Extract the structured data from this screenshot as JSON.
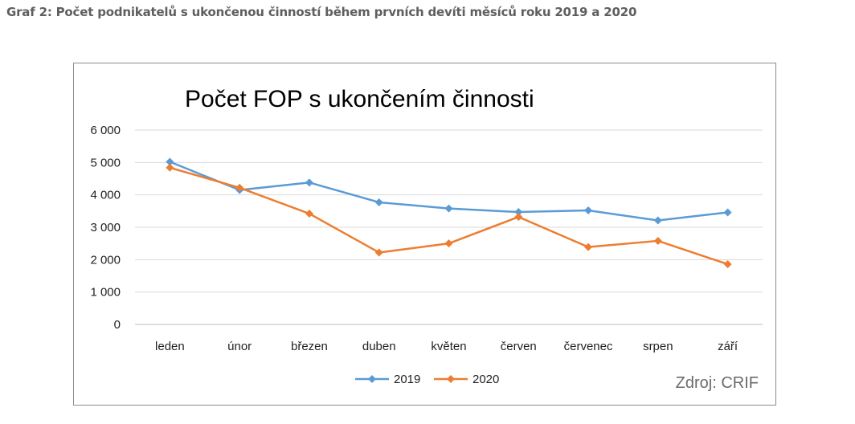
{
  "caption": "Graf 2: Počet podnikatelů s ukončenou činností během prvních devíti měsíců roku 2019 a 2020",
  "source": "Zdroj: CRIF",
  "chart_data": {
    "type": "line",
    "title": "Počet FOP s ukončením činnosti",
    "xlabel": "",
    "ylabel": "",
    "categories": [
      "leden",
      "únor",
      "březen",
      "duben",
      "květen",
      "červen",
      "červenec",
      "srpen",
      "září"
    ],
    "series": [
      {
        "name": "2019",
        "color": "#5b9bd5",
        "values": [
          5020,
          4150,
          4380,
          3770,
          3580,
          3470,
          3520,
          3210,
          3460
        ]
      },
      {
        "name": "2020",
        "color": "#ed7d31",
        "values": [
          4840,
          4220,
          3420,
          2220,
          2500,
          3320,
          2390,
          2580,
          1860
        ]
      }
    ],
    "ylim": [
      0,
      6000
    ],
    "yticks": [
      0,
      1000,
      2000,
      3000,
      4000,
      5000,
      6000
    ],
    "ytick_labels": [
      "0",
      "1 000",
      "2 000",
      "3 000",
      "4 000",
      "5 000",
      "6 000"
    ],
    "grid": true,
    "legend_position": "bottom"
  }
}
